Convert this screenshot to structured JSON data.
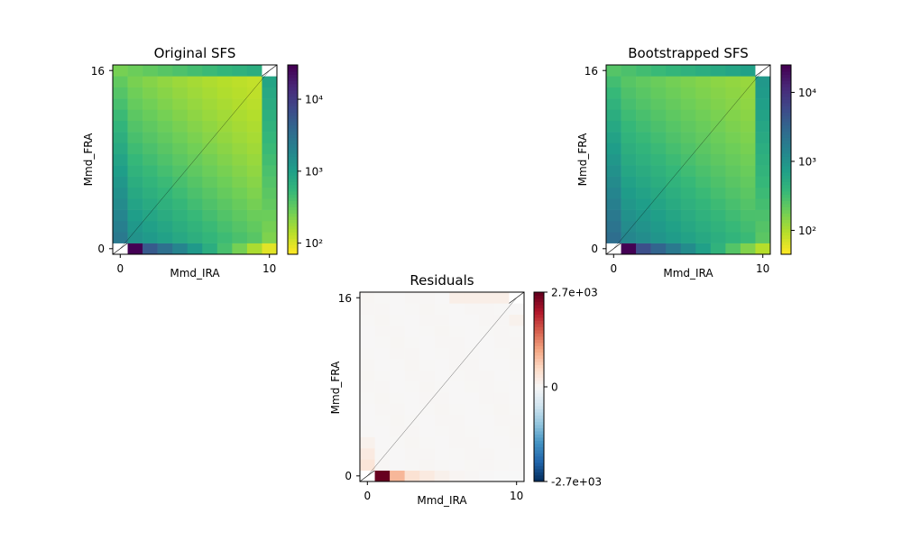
{
  "chart_data": [
    {
      "type": "heatmap",
      "title": "Original SFS",
      "xlabel": "Mmd_IRA",
      "ylabel": "Mmd_FRA",
      "xlim": [
        0,
        10
      ],
      "ylim": [
        0,
        16
      ],
      "x_ticks": [
        "0",
        "10"
      ],
      "y_ticks": [
        "0",
        "16"
      ],
      "color_scale": "log",
      "colormap": "viridis_r",
      "clim": [
        70,
        30000
      ],
      "colorbar_ticks": [
        {
          "value": 10000,
          "label": "10⁴"
        },
        {
          "value": 1000,
          "label": "10³"
        },
        {
          "value": 100,
          "label": "10²"
        }
      ],
      "masked_corners": true,
      "diagonal_line": true
    },
    {
      "type": "heatmap",
      "title": "Bootstrapped SFS",
      "xlabel": "Mmd_IRA",
      "ylabel": "Mmd_FRA",
      "xlim": [
        0,
        10
      ],
      "ylim": [
        0,
        16
      ],
      "x_ticks": [
        "0",
        "10"
      ],
      "y_ticks": [
        "0",
        "16"
      ],
      "color_scale": "log",
      "colormap": "viridis_r",
      "clim": [
        45,
        25000
      ],
      "colorbar_ticks": [
        {
          "value": 10000,
          "label": "10⁴"
        },
        {
          "value": 1000,
          "label": "10³"
        },
        {
          "value": 100,
          "label": "10²"
        }
      ],
      "masked_corners": true,
      "diagonal_line": true
    },
    {
      "type": "heatmap",
      "title": "Residuals",
      "xlabel": "Mmd_IRA",
      "ylabel": "Mmd_FRA",
      "xlim": [
        0,
        10
      ],
      "ylim": [
        0,
        16
      ],
      "x_ticks": [
        "0",
        "10"
      ],
      "y_ticks": [
        "0",
        "16"
      ],
      "color_scale": "linear",
      "colormap": "RdBu_r",
      "clim": [
        -2700,
        2700
      ],
      "colorbar_ticks": [
        {
          "value": 2700,
          "label": "2.7e+03"
        },
        {
          "value": 0,
          "label": "0"
        },
        {
          "value": -2700,
          "label": "-2.7e+03"
        }
      ],
      "masked_corners": true,
      "diagonal_line": true
    }
  ]
}
